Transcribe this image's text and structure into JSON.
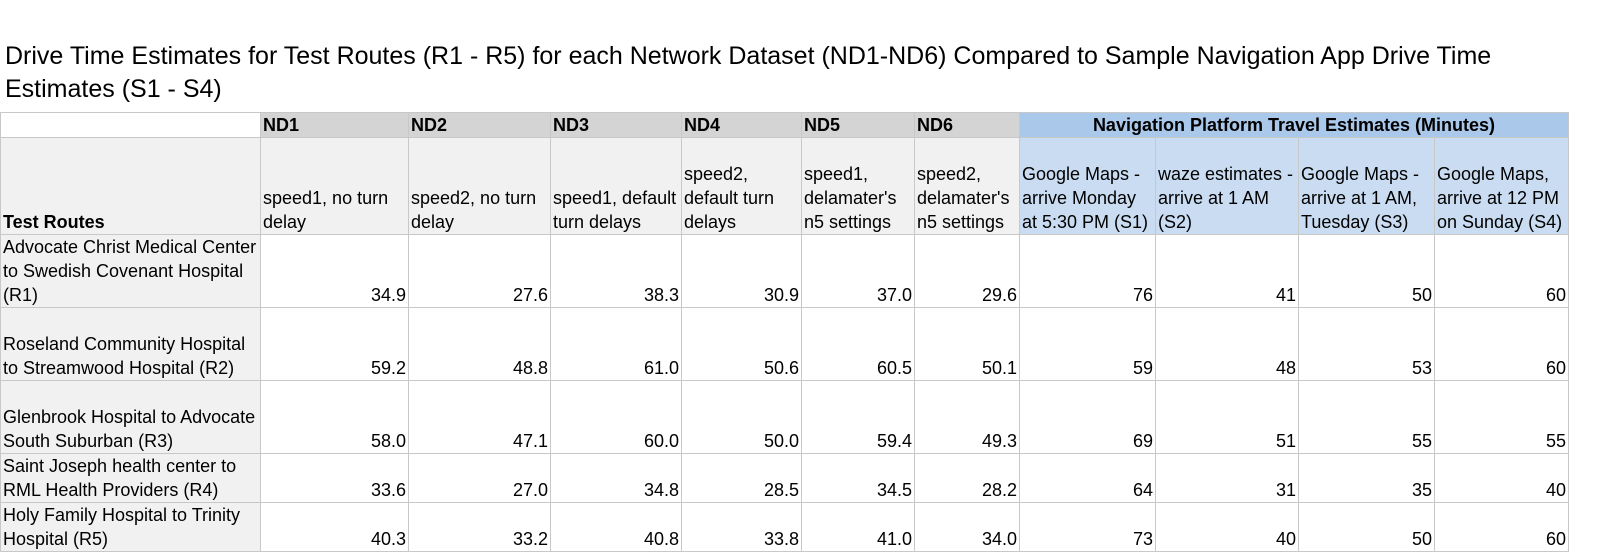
{
  "title": "Drive Time Estimates for Test Routes (R1 - R5) for each Network Dataset (ND1-ND6) Compared to Sample Navigation App Drive Time Estimates (S1 - S4)",
  "header": {
    "nd_names": [
      "ND1",
      "ND2",
      "ND3",
      "ND4",
      "ND5",
      "ND6"
    ],
    "nav_group": "Navigation Platform Travel Estimates (Minutes)",
    "test_routes_label": "Test Routes",
    "nd_descriptions": [
      "speed1, no turn delay",
      "speed2, no turn delay",
      "speed1, default turn delays",
      "speed2, default turn delays",
      "speed1, delamater's n5 settings",
      "speed2, delamater's n5 settings"
    ],
    "nav_descriptions": [
      "Google Maps - arrive Monday at 5:30 PM (S1)",
      "waze estimates - arrive at 1 AM (S2)",
      "Google Maps - arrive at 1 AM, Tuesday (S3)",
      "Google Maps, arrive at 12 PM on Sunday (S4)"
    ]
  },
  "rows": [
    {
      "route": "Advocate Christ Medical Center to Swedish Covenant Hospital (R1)",
      "values": [
        "34.9",
        "27.6",
        "38.3",
        "30.9",
        "37.0",
        "29.6",
        "76",
        "41",
        "50",
        "60"
      ]
    },
    {
      "route": "Roseland Community Hospital to Streamwood Hospital (R2)",
      "values": [
        "59.2",
        "48.8",
        "61.0",
        "50.6",
        "60.5",
        "50.1",
        "59",
        "48",
        "53",
        "60"
      ]
    },
    {
      "route": "Glenbrook Hospital to Advocate South Suburban (R3)",
      "values": [
        "58.0",
        "47.1",
        "60.0",
        "50.0",
        "59.4",
        "49.3",
        "69",
        "51",
        "55",
        "55"
      ]
    },
    {
      "route": "Saint Joseph health center to RML Health Providers (R4)",
      "values": [
        "33.6",
        "27.0",
        "34.8",
        "28.5",
        "34.5",
        "28.2",
        "64",
        "31",
        "35",
        "40"
      ]
    },
    {
      "route": "Holy Family Hospital to Trinity Hospital (R5)",
      "values": [
        "40.3",
        "33.2",
        "40.8",
        "33.8",
        "41.0",
        "34.0",
        "73",
        "40",
        "50",
        "60"
      ]
    }
  ]
}
